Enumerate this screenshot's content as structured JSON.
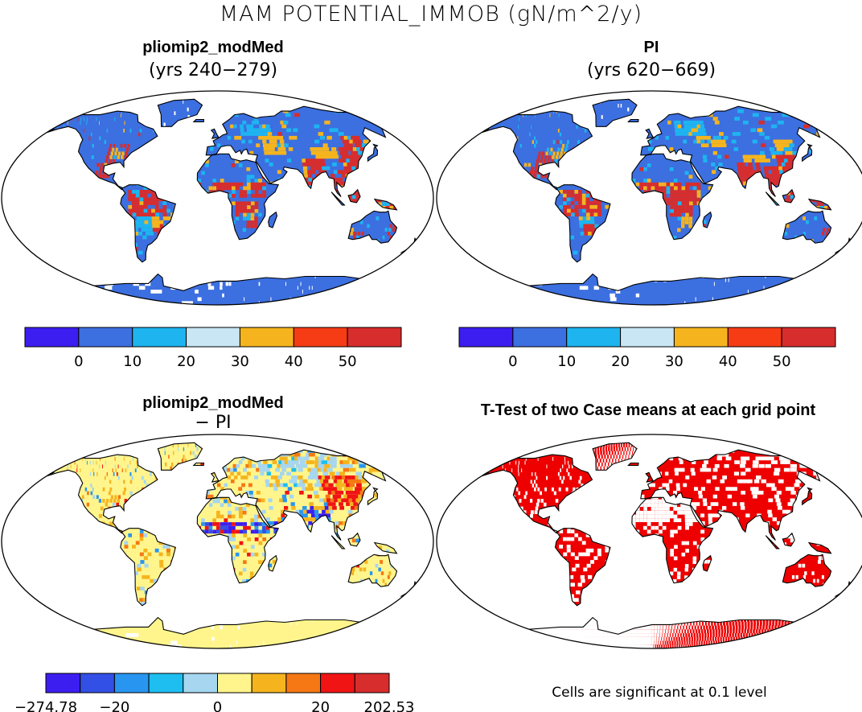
{
  "figure_title": "MAM POTENTIAL_IMMOB (gN/m^2/y)",
  "panels": {
    "top_left": {
      "title": "pliomip2_modMed",
      "subtitle": "(yrs 240−279)"
    },
    "top_right": {
      "title": "PI",
      "subtitle": "(yrs 620−669)"
    },
    "bottom_left": {
      "title": "pliomip2_modMed",
      "subtitle": "− PI"
    },
    "bottom_right": {
      "title": "T-Test of two Case means at each grid point",
      "note": "Cells are significant at 0.1 level"
    }
  },
  "colorbar_abs": {
    "colors": [
      "#3c1ef0",
      "#3c6fe0",
      "#1eb4f0",
      "#c8e6f4",
      "#f5b41e",
      "#f53c14",
      "#d72d2d"
    ],
    "labels": [
      "0",
      "10",
      "20",
      "30",
      "40",
      "50"
    ]
  },
  "colorbar_diff": {
    "colors": [
      "#3c1ef0",
      "#3250e6",
      "#2896f0",
      "#1ebef0",
      "#a6d6f0",
      "#fff58c",
      "#f5b41e",
      "#f57814",
      "#f01414",
      "#d72d2d"
    ],
    "labels": [
      "−274.78",
      "−20",
      "0",
      "20",
      "202.53"
    ]
  },
  "map_colors": {
    "ocean": "#ffffff",
    "land_base_abs": "#3c6fe0",
    "land_base_diff": "#fff58c",
    "significant": "#ee0000",
    "hot": "#d72d2d",
    "warm": "#f5b41e",
    "cool": "#1eb4f0"
  }
}
